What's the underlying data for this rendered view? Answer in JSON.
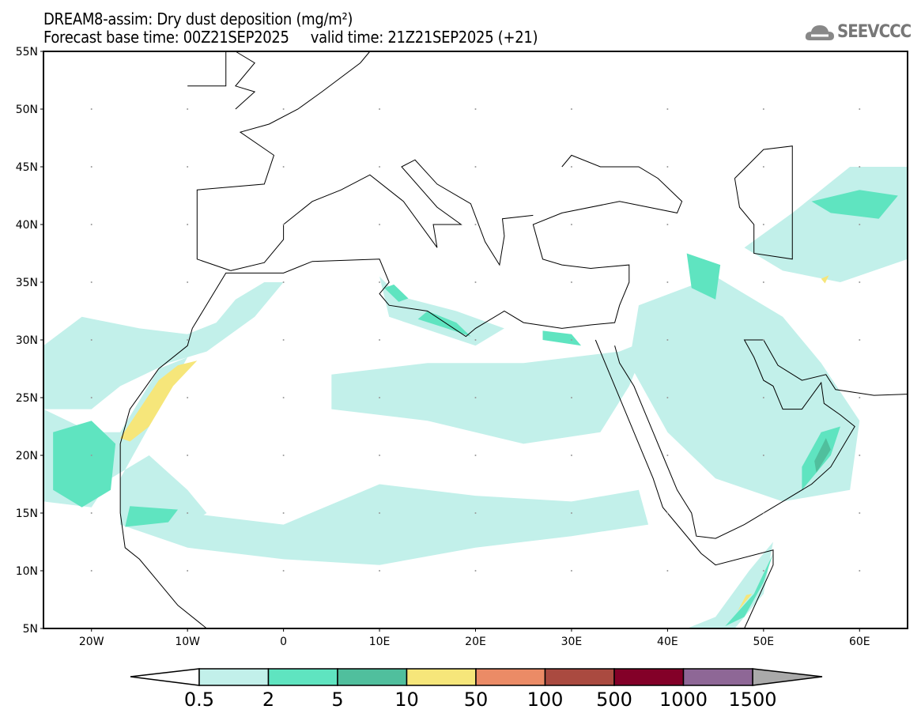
{
  "header": {
    "title": "DREAM8-assim: Dry dust deposition (mg/m²)",
    "subtitle": "Forecast base time: 00Z21SEP2025     valid time: 21Z21SEP2025 (+21)",
    "logo": "SEEVCCC"
  },
  "map": {
    "lon_range": [
      -25,
      65
    ],
    "lat_range": [
      5,
      55
    ],
    "lat_ticks": [
      {
        "v": 55,
        "l": "55N"
      },
      {
        "v": 50,
        "l": "50N"
      },
      {
        "v": 45,
        "l": "45N"
      },
      {
        "v": 40,
        "l": "40N"
      },
      {
        "v": 35,
        "l": "35N"
      },
      {
        "v": 30,
        "l": "30N"
      },
      {
        "v": 25,
        "l": "25N"
      },
      {
        "v": 20,
        "l": "20N"
      },
      {
        "v": 15,
        "l": "15N"
      },
      {
        "v": 10,
        "l": "10N"
      },
      {
        "v": 5,
        "l": "5N"
      }
    ],
    "lon_ticks": [
      {
        "v": -20,
        "l": "20W"
      },
      {
        "v": -10,
        "l": "10W"
      },
      {
        "v": 0,
        "l": "0"
      },
      {
        "v": 10,
        "l": "10E"
      },
      {
        "v": 20,
        "l": "20E"
      },
      {
        "v": 30,
        "l": "30E"
      },
      {
        "v": 40,
        "l": "40E"
      },
      {
        "v": 50,
        "l": "50E"
      },
      {
        "v": 60,
        "l": "60E"
      }
    ],
    "dust_fields": [
      {
        "level": 0,
        "pts": [
          [
            -25,
            29.5
          ],
          [
            -21,
            32
          ],
          [
            -15,
            31
          ],
          [
            -10,
            30.5
          ],
          [
            -7,
            31.5
          ],
          [
            -5,
            33.5
          ],
          [
            -2,
            35
          ],
          [
            0,
            35
          ],
          [
            -3,
            32
          ],
          [
            -8,
            29
          ],
          [
            -12,
            28
          ],
          [
            -17,
            26
          ],
          [
            -20,
            24
          ],
          [
            -25,
            24
          ]
        ]
      },
      {
        "level": 0,
        "pts": [
          [
            -25,
            24
          ],
          [
            -20,
            22
          ],
          [
            -17,
            22
          ],
          [
            -13,
            27.5
          ],
          [
            -10,
            28.5
          ],
          [
            -13,
            24
          ],
          [
            -17,
            18
          ],
          [
            -17,
            14
          ],
          [
            -12,
            13
          ],
          [
            -8,
            15
          ],
          [
            -10,
            17
          ],
          [
            -14,
            20
          ],
          [
            -18,
            18
          ],
          [
            -20,
            15.5
          ],
          [
            -25,
            16
          ]
        ]
      },
      {
        "level": 0,
        "pts": [
          [
            -17,
            14
          ],
          [
            -10,
            12
          ],
          [
            0,
            11
          ],
          [
            10,
            10.5
          ],
          [
            20,
            12
          ],
          [
            30,
            13
          ],
          [
            38,
            14
          ],
          [
            37,
            17
          ],
          [
            30,
            16
          ],
          [
            20,
            16.5
          ],
          [
            10,
            17.5
          ],
          [
            0,
            14
          ],
          [
            -10,
            15
          ]
        ]
      },
      {
        "level": 0,
        "pts": [
          [
            5,
            24
          ],
          [
            15,
            23
          ],
          [
            25,
            21
          ],
          [
            33,
            22
          ],
          [
            36,
            26
          ],
          [
            38,
            30
          ],
          [
            35,
            29
          ],
          [
            25,
            28
          ],
          [
            15,
            28
          ],
          [
            5,
            27
          ]
        ]
      },
      {
        "level": 0,
        "pts": [
          [
            10,
            35.5
          ],
          [
            11,
            32
          ],
          [
            20,
            29.5
          ],
          [
            23,
            31
          ],
          [
            18,
            32.5
          ],
          [
            12,
            33.8
          ]
        ]
      },
      {
        "level": 0,
        "pts": [
          [
            37,
            33
          ],
          [
            45,
            35.5
          ],
          [
            52,
            32
          ],
          [
            56,
            28
          ],
          [
            60,
            23
          ],
          [
            59,
            17
          ],
          [
            52,
            16
          ],
          [
            45,
            18
          ],
          [
            40,
            22
          ],
          [
            36,
            28
          ]
        ]
      },
      {
        "level": 0,
        "pts": [
          [
            48,
            38
          ],
          [
            53,
            41
          ],
          [
            59,
            45
          ],
          [
            65,
            45
          ],
          [
            65,
            37
          ],
          [
            58,
            35
          ],
          [
            52,
            36
          ]
        ]
      },
      {
        "level": 0,
        "pts": [
          [
            42,
            5
          ],
          [
            45,
            6
          ],
          [
            48.5,
            10
          ],
          [
            51,
            12.5
          ],
          [
            50,
            8
          ],
          [
            47,
            5
          ]
        ]
      },
      {
        "level": 1,
        "pts": [
          [
            14,
            31.8
          ],
          [
            17,
            31
          ],
          [
            19.5,
            30.3
          ],
          [
            18,
            31.5
          ],
          [
            15,
            32.5
          ]
        ]
      },
      {
        "level": 1,
        "pts": [
          [
            10.5,
            34.5
          ],
          [
            12,
            33.3
          ],
          [
            13,
            33.6
          ],
          [
            11.5,
            34.8
          ]
        ]
      },
      {
        "level": 1,
        "pts": [
          [
            54,
            17
          ],
          [
            57,
            20
          ],
          [
            58,
            22.5
          ],
          [
            56,
            22
          ],
          [
            54,
            19
          ]
        ]
      },
      {
        "level": 1,
        "pts": [
          [
            46,
            5.2
          ],
          [
            49,
            8
          ],
          [
            51,
            11.5
          ],
          [
            50,
            9
          ],
          [
            48,
            6
          ]
        ]
      },
      {
        "level": 1,
        "pts": [
          [
            -16.5,
            13.8
          ],
          [
            -12,
            14.2
          ],
          [
            -11,
            15.3
          ],
          [
            -16,
            15.6
          ]
        ]
      },
      {
        "level": 1,
        "pts": [
          [
            -24,
            22
          ],
          [
            -20,
            23
          ],
          [
            -17.5,
            21
          ],
          [
            -18,
            17
          ],
          [
            -21,
            15.5
          ],
          [
            -24,
            17
          ]
        ]
      },
      {
        "level": 1,
        "pts": [
          [
            55,
            42
          ],
          [
            60,
            43
          ],
          [
            64,
            42.5
          ],
          [
            62,
            40.5
          ],
          [
            57,
            41
          ]
        ]
      },
      {
        "level": 1,
        "pts": [
          [
            42,
            37.5
          ],
          [
            45.5,
            36.5
          ],
          [
            45,
            33.5
          ],
          [
            42.5,
            34.5
          ]
        ]
      },
      {
        "level": 1,
        "pts": [
          [
            27,
            30
          ],
          [
            31,
            29.5
          ],
          [
            30,
            30.5
          ],
          [
            27,
            30.8
          ]
        ]
      },
      {
        "level": 2,
        "pts": [
          [
            55.5,
            18.5
          ],
          [
            57,
            20.5
          ],
          [
            56.5,
            21.5
          ],
          [
            55.3,
            19.5
          ]
        ]
      },
      {
        "level": 3,
        "pts": [
          [
            -17,
            21.5
          ],
          [
            -15,
            24
          ],
          [
            -13,
            26.5
          ],
          [
            -11,
            27.8
          ],
          [
            -9,
            28.2
          ],
          [
            -11.5,
            26
          ],
          [
            -14,
            22.5
          ],
          [
            -16,
            21.2
          ]
        ]
      },
      {
        "level": 3,
        "pts": [
          [
            47.3,
            6.5
          ],
          [
            48.8,
            8
          ],
          [
            48.2,
            7.9
          ]
        ]
      },
      {
        "level": 3,
        "pts": [
          [
            56,
            35.3
          ],
          [
            56.8,
            35.6
          ],
          [
            56.4,
            34.9
          ]
        ]
      }
    ],
    "coastlines": [
      [
        [
          -8,
          5
        ],
        [
          -11,
          7
        ],
        [
          -13,
          9
        ],
        [
          -15,
          11
        ],
        [
          -16.5,
          12
        ],
        [
          -17,
          15
        ],
        [
          -17,
          21
        ],
        [
          -16,
          24
        ],
        [
          -13,
          27.5
        ],
        [
          -10,
          29.5
        ],
        [
          -9.5,
          31
        ],
        [
          -6,
          35.8
        ],
        [
          -5,
          35.8
        ],
        [
          0,
          35.8
        ],
        [
          3,
          36.8
        ],
        [
          10,
          37
        ],
        [
          11,
          35
        ],
        [
          10,
          34
        ],
        [
          11,
          33
        ],
        [
          15,
          32.5
        ],
        [
          19,
          30.3
        ],
        [
          20,
          31
        ],
        [
          23,
          32.5
        ],
        [
          25,
          31.5
        ],
        [
          29,
          31
        ],
        [
          32,
          31.3
        ],
        [
          34.5,
          31.5
        ],
        [
          35,
          33
        ],
        [
          36,
          35
        ],
        [
          36,
          36.5
        ],
        [
          32,
          36.2
        ],
        [
          29,
          36.5
        ],
        [
          27,
          37
        ],
        [
          26,
          40
        ],
        [
          29,
          41
        ],
        [
          35,
          42
        ],
        [
          41,
          41
        ],
        [
          41.5,
          42
        ],
        [
          39,
          44
        ],
        [
          37,
          45
        ],
        [
          33,
          45
        ],
        [
          30,
          46
        ],
        [
          29,
          45
        ]
      ],
      [
        [
          32.5,
          30
        ],
        [
          34,
          27
        ],
        [
          35.5,
          24
        ],
        [
          37,
          21
        ],
        [
          38.5,
          18
        ],
        [
          39.5,
          15.5
        ],
        [
          42.5,
          12.5
        ],
        [
          43.5,
          11.5
        ],
        [
          45,
          10.5
        ],
        [
          51,
          11.8
        ],
        [
          51,
          10.5
        ],
        [
          48,
          5
        ]
      ],
      [
        [
          34.5,
          29.5
        ],
        [
          35,
          28
        ],
        [
          36.5,
          26
        ],
        [
          38.5,
          22
        ],
        [
          39.5,
          20
        ],
        [
          41,
          17
        ],
        [
          42.5,
          15
        ],
        [
          43,
          13
        ],
        [
          45,
          12.8
        ],
        [
          48,
          14
        ],
        [
          52,
          16
        ],
        [
          55,
          17.5
        ],
        [
          57,
          19
        ],
        [
          59.5,
          22.5
        ],
        [
          58,
          23.5
        ],
        [
          56.3,
          24.5
        ],
        [
          56,
          26.3
        ],
        [
          54,
          24
        ],
        [
          52,
          24
        ],
        [
          51,
          26
        ],
        [
          50,
          26.5
        ],
        [
          49,
          28.5
        ],
        [
          48,
          30
        ],
        [
          50,
          30
        ],
        [
          51.5,
          27.8
        ],
        [
          54,
          26.5
        ],
        [
          56.5,
          27
        ],
        [
          57.5,
          25.7
        ],
        [
          61.5,
          25.2
        ],
        [
          65,
          25.3
        ]
      ],
      [
        [
          -5.5,
          36
        ],
        [
          -9,
          37
        ],
        [
          -9,
          43
        ],
        [
          -2,
          43.5
        ],
        [
          -1,
          46
        ],
        [
          -4.5,
          48
        ],
        [
          -1.5,
          48.7
        ],
        [
          1.5,
          50
        ],
        [
          4,
          51.5
        ],
        [
          8,
          54
        ],
        [
          9,
          55
        ]
      ],
      [
        [
          -5.5,
          36
        ],
        [
          -2,
          36.7
        ],
        [
          0,
          38.7
        ],
        [
          0,
          40
        ],
        [
          3,
          42
        ],
        [
          6,
          43
        ],
        [
          9,
          44.3
        ],
        [
          12.5,
          42
        ],
        [
          16,
          38
        ],
        [
          15.6,
          40
        ],
        [
          18.5,
          40
        ],
        [
          16,
          41.5
        ],
        [
          12.3,
          45
        ],
        [
          13.7,
          45.6
        ],
        [
          16,
          43.5
        ],
        [
          19.5,
          41.8
        ],
        [
          21,
          38.5
        ],
        [
          22.5,
          36.5
        ],
        [
          23,
          39
        ],
        [
          22.8,
          40.5
        ],
        [
          26,
          40.8
        ]
      ],
      [
        [
          47,
          44
        ],
        [
          50,
          46.5
        ],
        [
          53,
          46.8
        ],
        [
          53,
          42
        ],
        [
          53,
          37
        ],
        [
          49,
          37.5
        ],
        [
          49,
          40
        ],
        [
          47.5,
          41.5
        ],
        [
          47,
          44
        ]
      ],
      [
        [
          -5,
          50
        ],
        [
          -3,
          51.5
        ],
        [
          -5,
          52
        ],
        [
          -3,
          54
        ],
        [
          -5,
          55
        ]
      ],
      [
        [
          -10,
          52
        ],
        [
          -6,
          52
        ],
        [
          -6,
          55
        ]
      ]
    ]
  },
  "colorbar": {
    "colors": [
      "#ffffff",
      "#c2f0ea",
      "#5fe4c0",
      "#50bf9d",
      "#f6e67a",
      "#eb8b66",
      "#aa4a40",
      "#830028",
      "#8e6796",
      "#aaaaaa"
    ],
    "labels": [
      "0.5",
      "2",
      "5",
      "10",
      "50",
      "100",
      "500",
      "1000",
      "1500"
    ]
  }
}
